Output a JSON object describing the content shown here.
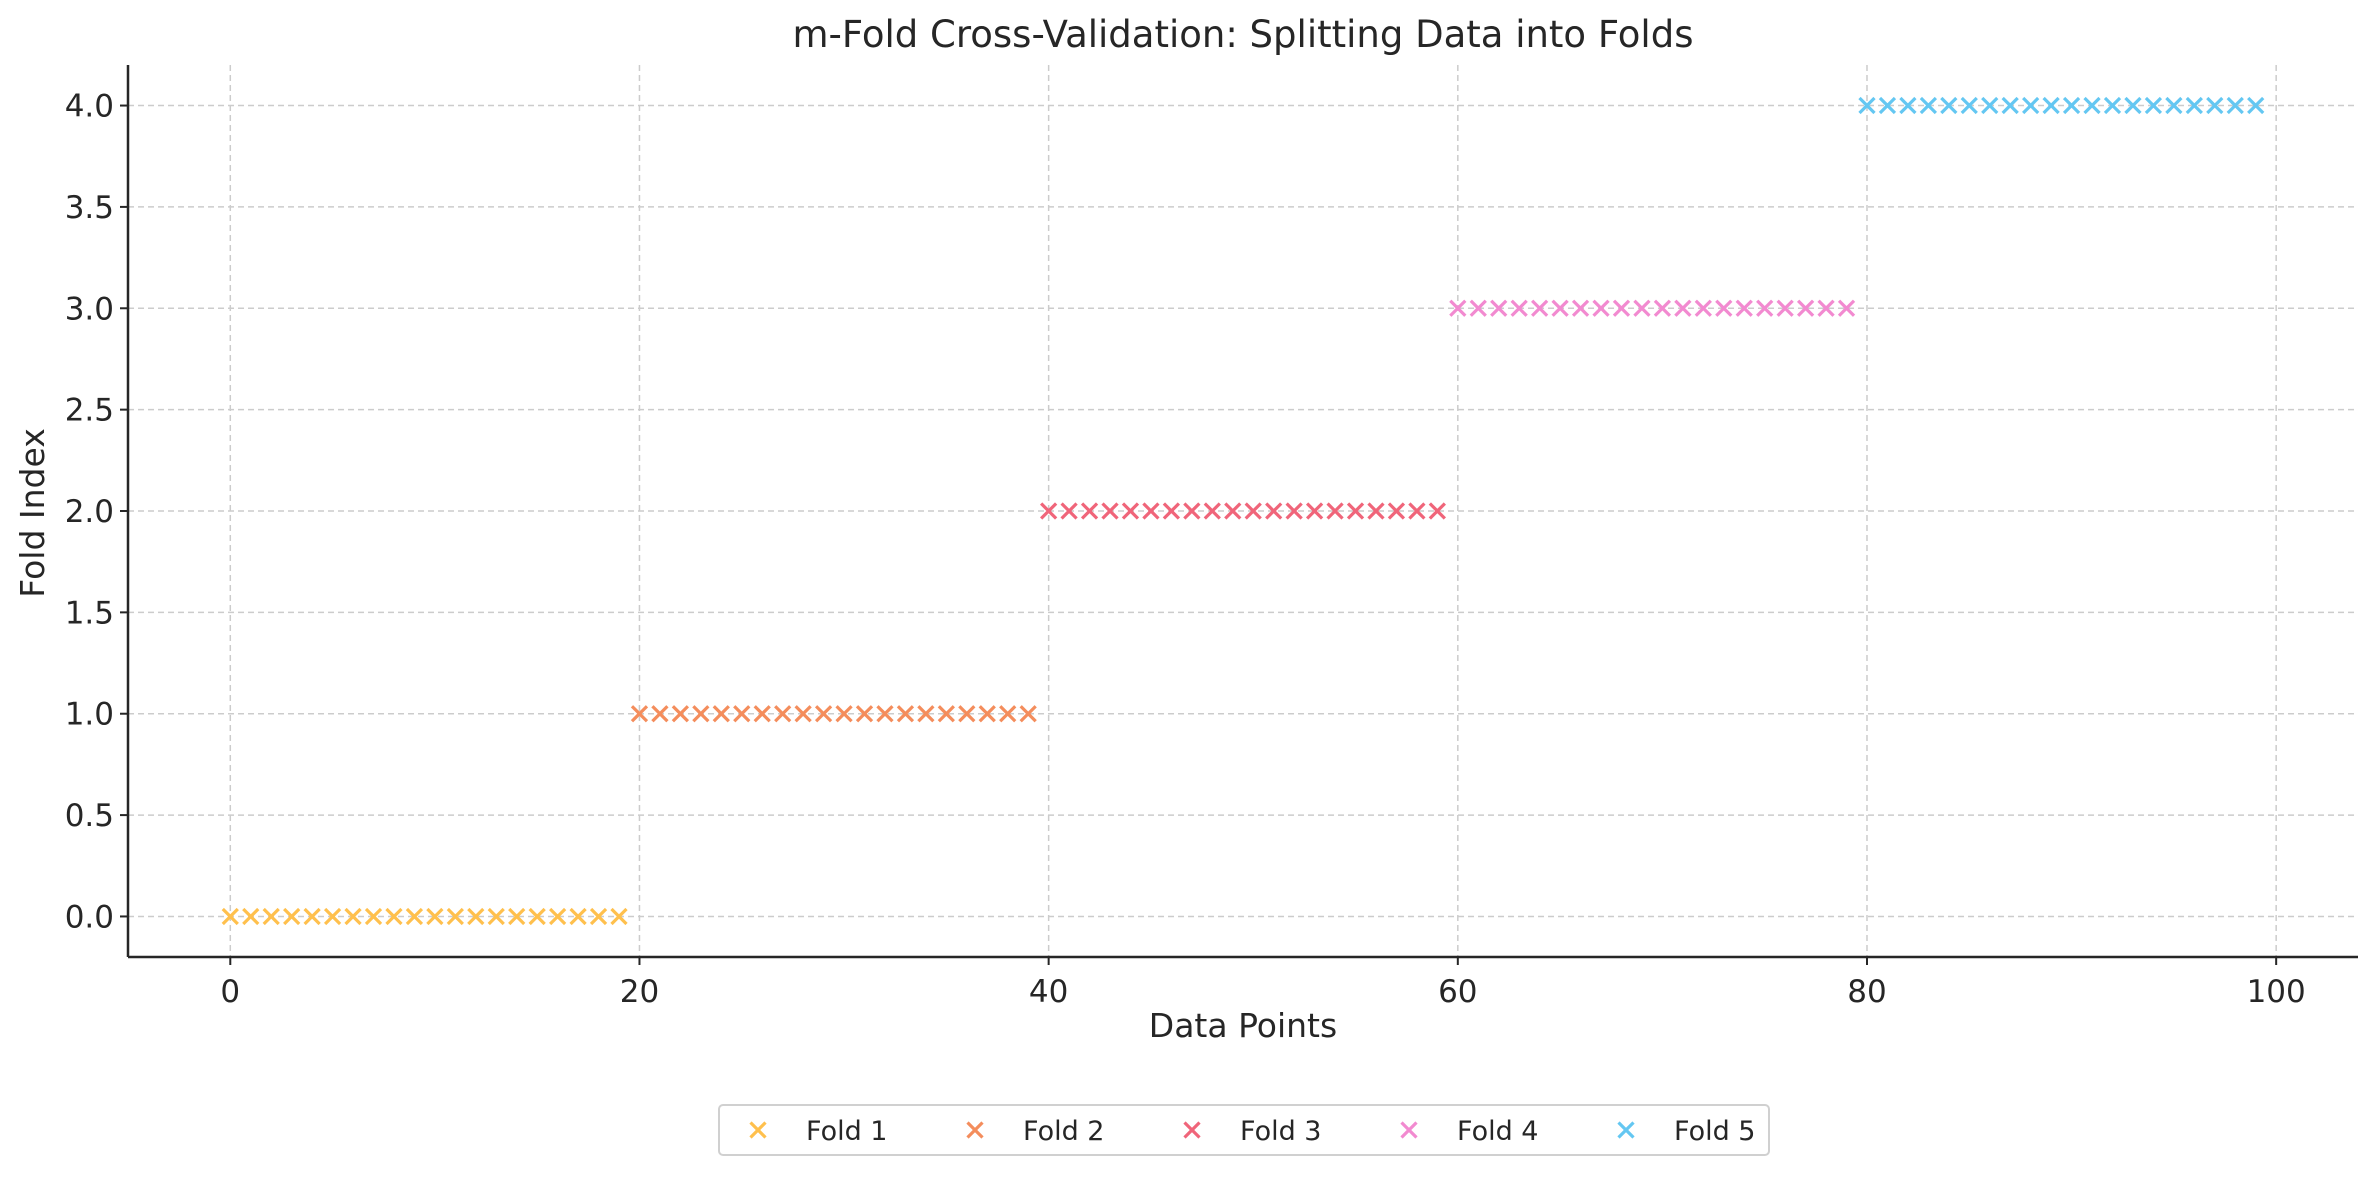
{
  "chart_data": {
    "type": "scatter",
    "title": "m-Fold Cross-Validation: Splitting Data into Folds",
    "xlabel": "Data Points",
    "ylabel": "Fold Index",
    "xlim": [
      -5,
      104
    ],
    "ylim": [
      -0.2,
      4.2
    ],
    "x_ticks": [
      0,
      20,
      40,
      60,
      80,
      100
    ],
    "y_ticks": [
      0,
      0.5,
      1,
      1.5,
      2,
      2.5,
      3,
      3.5,
      4
    ],
    "x_tick_labels": [
      "0",
      "20",
      "40",
      "60",
      "80",
      "100"
    ],
    "y_tick_labels": [
      "0.0",
      "0.5",
      "1.0",
      "1.5",
      "2.0",
      "2.5",
      "3.0",
      "3.5",
      "4.0"
    ],
    "grid": true,
    "legend_position": "bottom-center",
    "marker": "x",
    "series": [
      {
        "name": "Fold 1",
        "color": "#FFC04D",
        "y": 0,
        "x": [
          0,
          1,
          2,
          3,
          4,
          5,
          6,
          7,
          8,
          9,
          10,
          11,
          12,
          13,
          14,
          15,
          16,
          17,
          18,
          19
        ]
      },
      {
        "name": "Fold 2",
        "color": "#F48D5C",
        "y": 1,
        "x": [
          20,
          21,
          22,
          23,
          24,
          25,
          26,
          27,
          28,
          29,
          30,
          31,
          32,
          33,
          34,
          35,
          36,
          37,
          38,
          39
        ]
      },
      {
        "name": "Fold 3",
        "color": "#F0657A",
        "y": 2,
        "x": [
          40,
          41,
          42,
          43,
          44,
          45,
          46,
          47,
          48,
          49,
          50,
          51,
          52,
          53,
          54,
          55,
          56,
          57,
          58,
          59
        ]
      },
      {
        "name": "Fold 4",
        "color": "#F28AD0",
        "y": 3,
        "x": [
          60,
          61,
          62,
          63,
          64,
          65,
          66,
          67,
          68,
          69,
          70,
          71,
          72,
          73,
          74,
          75,
          76,
          77,
          78,
          79
        ]
      },
      {
        "name": "Fold 5",
        "color": "#64C7F2",
        "y": 4,
        "x": [
          80,
          81,
          82,
          83,
          84,
          85,
          86,
          87,
          88,
          89,
          90,
          91,
          92,
          93,
          94,
          95,
          96,
          97,
          98,
          99
        ]
      }
    ]
  }
}
